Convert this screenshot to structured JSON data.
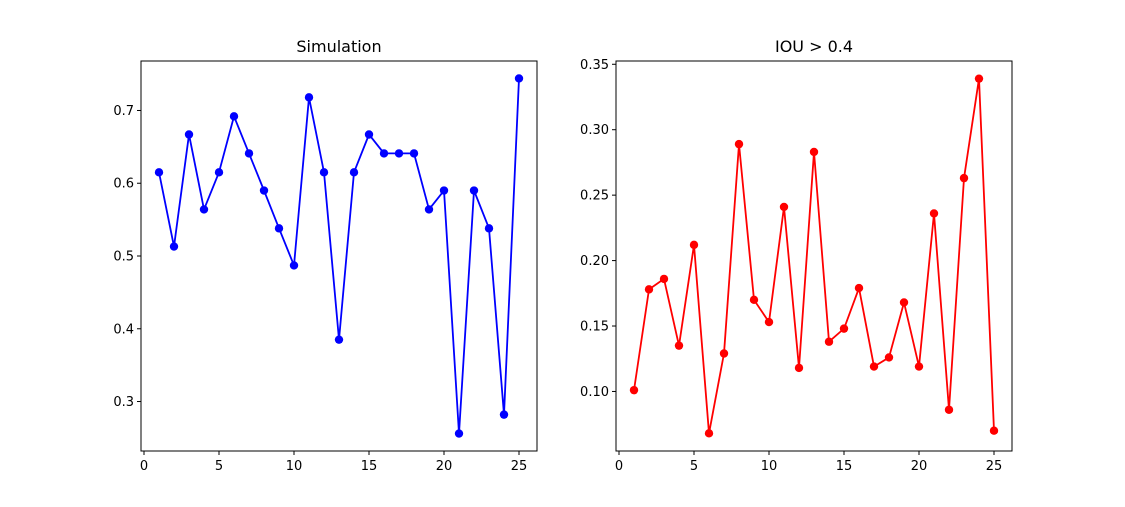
{
  "chart_data": [
    {
      "type": "line",
      "title": "Simulation",
      "xlabel": "",
      "ylabel": "",
      "x": [
        1,
        2,
        3,
        4,
        5,
        6,
        7,
        8,
        9,
        10,
        11,
        12,
        13,
        14,
        15,
        16,
        17,
        18,
        19,
        20,
        21,
        22,
        23,
        24,
        25
      ],
      "series": [
        {
          "color": "#0000ff",
          "marker": "circle",
          "values": [
            0.615,
            0.513,
            0.667,
            0.564,
            0.615,
            0.692,
            0.641,
            0.59,
            0.538,
            0.487,
            0.718,
            0.615,
            0.385,
            0.615,
            0.667,
            0.641,
            0.641,
            0.641,
            0.564,
            0.59,
            0.256,
            0.59,
            0.538,
            0.282,
            0.744
          ]
        }
      ],
      "xlim": [
        -0.2,
        26.2
      ],
      "ylim": [
        0.232,
        0.768
      ],
      "xticks": [
        0,
        5,
        10,
        15,
        20,
        25
      ],
      "xtick_labels": [
        "0",
        "5",
        "10",
        "15",
        "20",
        "25"
      ],
      "yticks": [
        0.3,
        0.4,
        0.5,
        0.6,
        0.7
      ],
      "ytick_labels": [
        "0.3",
        "0.4",
        "0.5",
        "0.6",
        "0.7"
      ],
      "grid": false
    },
    {
      "type": "line",
      "title": "IOU > 0.4",
      "xlabel": "",
      "ylabel": "",
      "x": [
        1,
        2,
        3,
        4,
        5,
        6,
        7,
        8,
        9,
        10,
        11,
        12,
        13,
        14,
        15,
        16,
        17,
        18,
        19,
        20,
        21,
        22,
        23,
        24,
        25
      ],
      "series": [
        {
          "color": "#ff0000",
          "marker": "circle",
          "values": [
            0.101,
            0.178,
            0.186,
            0.135,
            0.212,
            0.068,
            0.129,
            0.289,
            0.17,
            0.153,
            0.241,
            0.118,
            0.283,
            0.138,
            0.148,
            0.179,
            0.119,
            0.126,
            0.168,
            0.119,
            0.236,
            0.086,
            0.263,
            0.339,
            0.07
          ]
        }
      ],
      "xlim": [
        -0.2,
        26.2
      ],
      "ylim": [
        0.0545,
        0.3525
      ],
      "xticks": [
        0,
        5,
        10,
        15,
        20,
        25
      ],
      "xtick_labels": [
        "0",
        "5",
        "10",
        "15",
        "20",
        "25"
      ],
      "yticks": [
        0.1,
        0.15,
        0.2,
        0.25,
        0.3,
        0.35
      ],
      "ytick_labels": [
        "0.10",
        "0.15",
        "0.20",
        "0.25",
        "0.30",
        "0.35"
      ],
      "grid": false
    }
  ]
}
